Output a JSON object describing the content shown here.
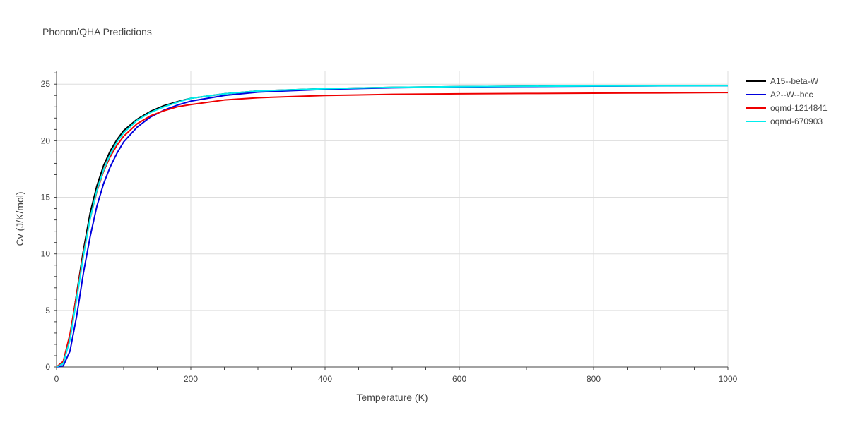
{
  "chart_data": {
    "type": "line",
    "title": "Phonon/QHA Predictions",
    "xlabel": "Temperature (K)",
    "ylabel": "Cv (J/K/mol)",
    "xlim": [
      0,
      1000
    ],
    "ylim": [
      0,
      26.2
    ],
    "xticks": [
      0,
      200,
      400,
      600,
      800,
      1000
    ],
    "yticks": [
      0,
      5,
      10,
      15,
      20,
      25
    ],
    "grid": true,
    "legend_position": "top-right",
    "series": [
      {
        "name": "A15--beta-W",
        "color": "#000000",
        "x": [
          0,
          10,
          20,
          30,
          40,
          50,
          60,
          70,
          80,
          90,
          100,
          120,
          140,
          160,
          180,
          200,
          250,
          300,
          400,
          500,
          600,
          700,
          800,
          900,
          1000
        ],
        "y": [
          0,
          0.4,
          2.7,
          6.5,
          10.3,
          13.6,
          16.0,
          17.8,
          19.1,
          20.1,
          20.9,
          21.9,
          22.6,
          23.1,
          23.45,
          23.75,
          24.15,
          24.4,
          24.6,
          24.72,
          24.78,
          24.82,
          24.84,
          24.86,
          24.87
        ]
      },
      {
        "name": "A2--W--bcc",
        "color": "#0000dd",
        "x": [
          0,
          10,
          20,
          30,
          40,
          50,
          60,
          70,
          80,
          90,
          100,
          120,
          140,
          160,
          180,
          200,
          250,
          300,
          400,
          500,
          600,
          700,
          800,
          900,
          1000
        ],
        "y": [
          0,
          0.1,
          1.4,
          4.5,
          8.3,
          11.5,
          14.2,
          16.2,
          17.7,
          18.9,
          19.9,
          21.2,
          22.1,
          22.7,
          23.15,
          23.5,
          24.0,
          24.3,
          24.55,
          24.68,
          24.75,
          24.8,
          24.83,
          24.85,
          24.86
        ]
      },
      {
        "name": "oqmd-1214841",
        "color": "#ee0000",
        "x": [
          0,
          10,
          20,
          30,
          40,
          50,
          60,
          70,
          80,
          90,
          100,
          120,
          140,
          160,
          180,
          200,
          250,
          300,
          400,
          500,
          600,
          700,
          800,
          900,
          1000
        ],
        "y": [
          0,
          0.5,
          2.9,
          6.4,
          10.0,
          13.1,
          15.5,
          17.3,
          18.6,
          19.6,
          20.4,
          21.5,
          22.2,
          22.65,
          23.0,
          23.2,
          23.6,
          23.8,
          24.0,
          24.1,
          24.15,
          24.18,
          24.2,
          24.23,
          24.26
        ]
      },
      {
        "name": "oqmd-670903",
        "color": "#00eeee",
        "x": [
          0,
          10,
          20,
          30,
          40,
          50,
          60,
          70,
          80,
          90,
          100,
          120,
          140,
          160,
          180,
          200,
          250,
          300,
          400,
          500,
          600,
          700,
          800,
          900,
          1000
        ],
        "y": [
          0,
          0.3,
          2.4,
          6.0,
          9.8,
          13.1,
          15.6,
          17.4,
          18.8,
          19.9,
          20.7,
          21.8,
          22.5,
          23.0,
          23.4,
          23.75,
          24.15,
          24.4,
          24.6,
          24.72,
          24.78,
          24.82,
          24.84,
          24.86,
          24.87
        ]
      }
    ]
  }
}
